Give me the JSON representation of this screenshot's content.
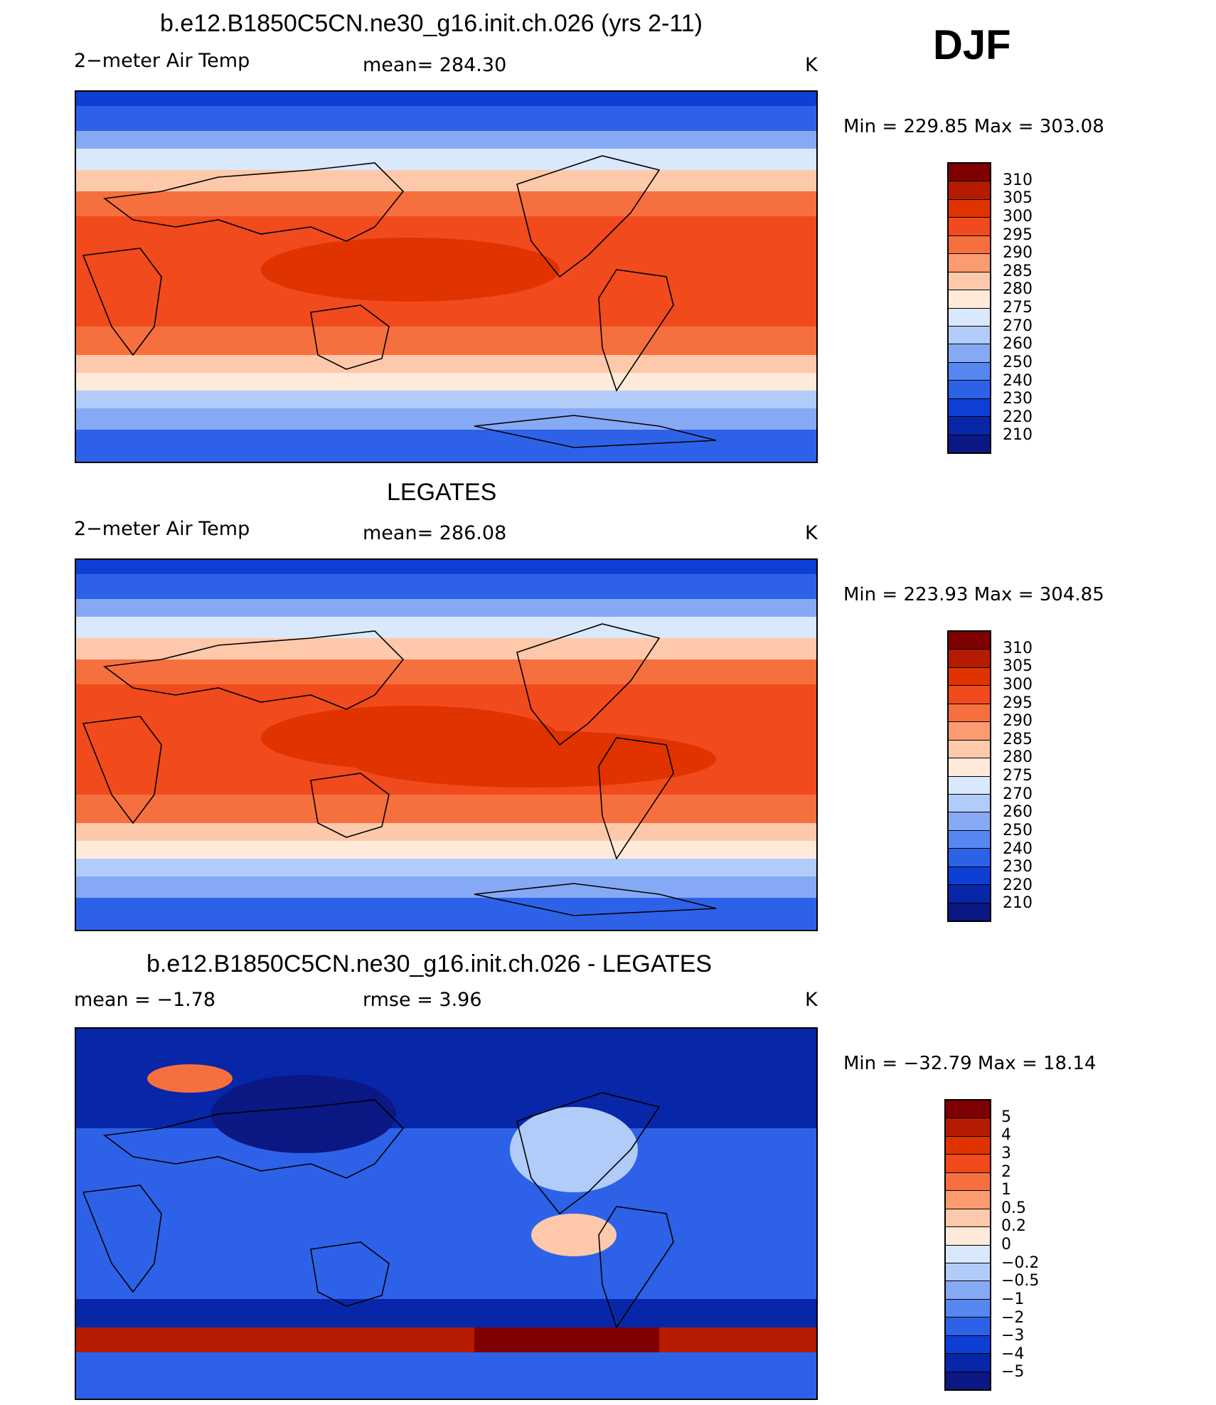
{
  "season": "DJF",
  "panels": [
    {
      "title": "b.e12.B1850C5CN.ne30_g16.init.ch.026 (yrs 2-11)",
      "left_label": "2−meter Air Temp",
      "center_label": "mean=  284.30",
      "units": "K",
      "min_max": "Min  =  229.85  Max  =  303.08",
      "colorbar_labels": [
        "310",
        "305",
        "300",
        "295",
        "290",
        "285",
        "280",
        "275",
        "270",
        "260",
        "250",
        "240",
        "230",
        "220",
        "210"
      ]
    },
    {
      "title": "LEGATES",
      "left_label": "2−meter Air Temp",
      "center_label": "mean=  286.08",
      "units": "K",
      "min_max": "Min  =  223.93  Max  =  304.85",
      "colorbar_labels": [
        "310",
        "305",
        "300",
        "295",
        "290",
        "285",
        "280",
        "275",
        "270",
        "260",
        "250",
        "240",
        "230",
        "220",
        "210"
      ]
    },
    {
      "title": "b.e12.B1850C5CN.ne30_g16.init.ch.026 - LEGATES",
      "left_label": "mean  =    −1.78",
      "center_label": "rmse  =     3.96",
      "units": "K",
      "min_max": "Min  =  −32.79  Max  =    18.14",
      "colorbar_labels": [
        "5",
        "4",
        "3",
        "2",
        "1",
        "0.5",
        "0.2",
        "0",
        "−0.2",
        "−0.5",
        "−1",
        "−2",
        "−3",
        "−4",
        "−5"
      ]
    }
  ],
  "colors": {
    "temp_scale": [
      "#7f0000",
      "#b51b00",
      "#e03300",
      "#f14a1d",
      "#f6703f",
      "#fa9b70",
      "#fdc9aa",
      "#ffead9",
      "#d9e8fb",
      "#b2ccf9",
      "#86a9f5",
      "#5687f1",
      "#2d62e8",
      "#0d3fd4",
      "#0826a8",
      "#0b1783"
    ],
    "diff_scale": [
      "#7f0000",
      "#b51b00",
      "#e03300",
      "#f14a1d",
      "#f6703f",
      "#fa9b70",
      "#fdc9aa",
      "#ffead9",
      "#d9e8fb",
      "#b2ccf9",
      "#86a9f5",
      "#5687f1",
      "#2d62e8",
      "#0d3fd4",
      "#0826a8",
      "#0b1783"
    ]
  }
}
